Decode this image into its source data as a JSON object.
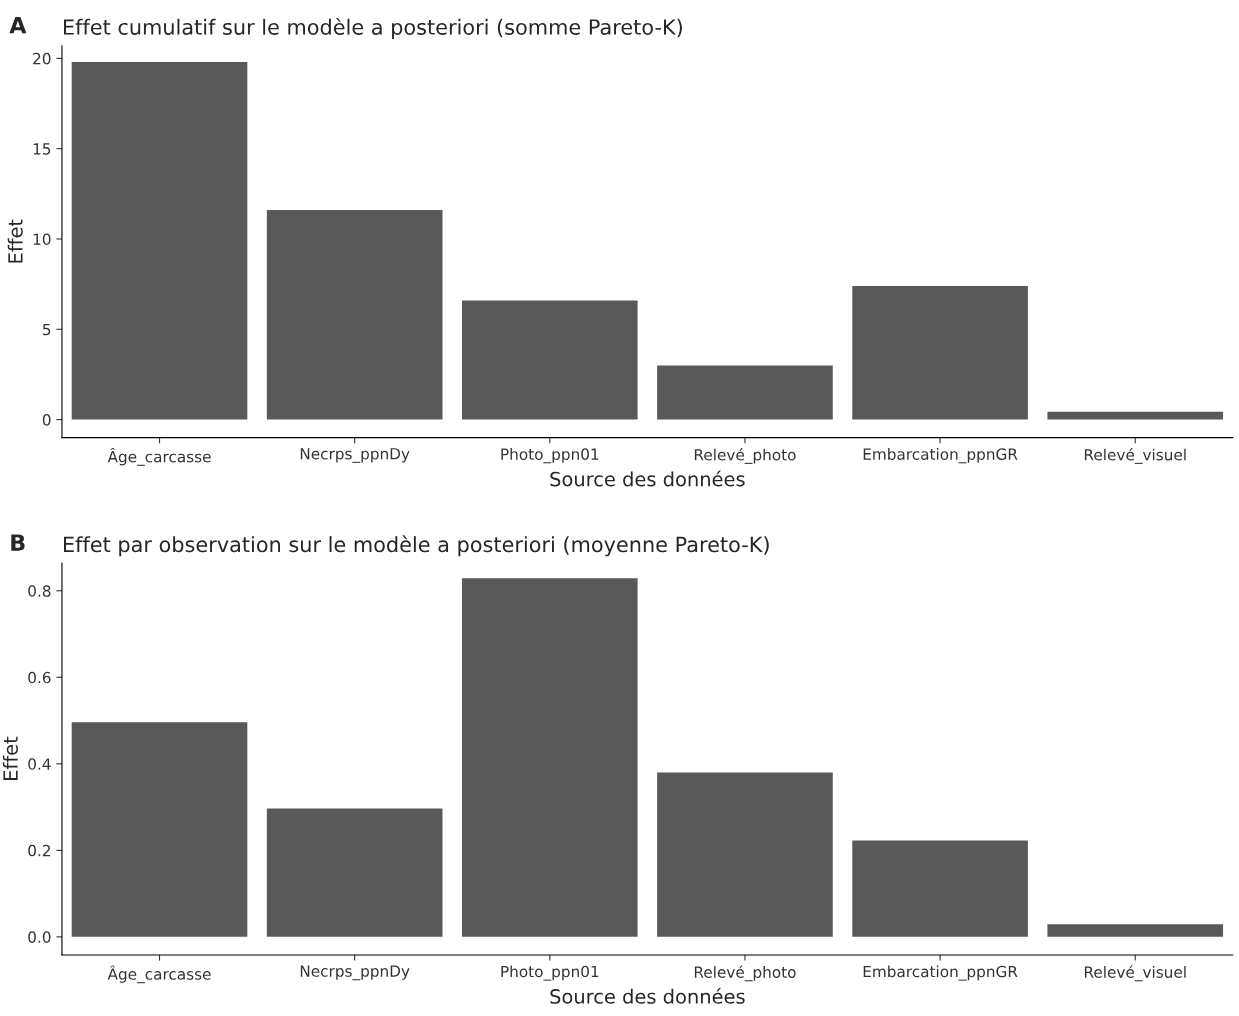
{
  "chart_data": [
    {
      "type": "bar",
      "title": "Effet cumulatif sur le modèle a posteriori (somme Pareto-K)",
      "annotations": [
        "A"
      ],
      "xlabel": "Source des données",
      "ylabel": "Effet",
      "categories": [
        "Âge_carcasse",
        "Necrps_ppnDy",
        "Photo_ppn01",
        "Relevé_photo",
        "Embarcation_ppnGR",
        "Relevé_visuel"
      ],
      "values": [
        19.8,
        11.6,
        6.6,
        3.0,
        7.4,
        0.43
      ],
      "color": "#595959",
      "ylim": [
        -1,
        20.7
      ],
      "yticks": [
        0,
        5,
        10,
        15,
        20
      ],
      "grid": false
    },
    {
      "type": "bar",
      "title": "Effet par observation sur le modèle a posteriori (moyenne Pareto-K)",
      "annotations": [
        "B"
      ],
      "xlabel": "Source des données",
      "ylabel": "Effet",
      "categories": [
        "Âge_carcasse",
        "Necrps_ppnDy",
        "Photo_ppn01",
        "Relevé_photo",
        "Embarcation_ppnGR",
        "Relevé_visuel"
      ],
      "values": [
        0.496,
        0.297,
        0.829,
        0.38,
        0.223,
        0.029
      ],
      "color": "#595959",
      "ylim": [
        -0.042,
        0.864
      ],
      "yticks": [
        {
          "value": 0,
          "label": "0.0"
        },
        0.2,
        0.4,
        0.6,
        0.8
      ],
      "grid": false
    }
  ]
}
